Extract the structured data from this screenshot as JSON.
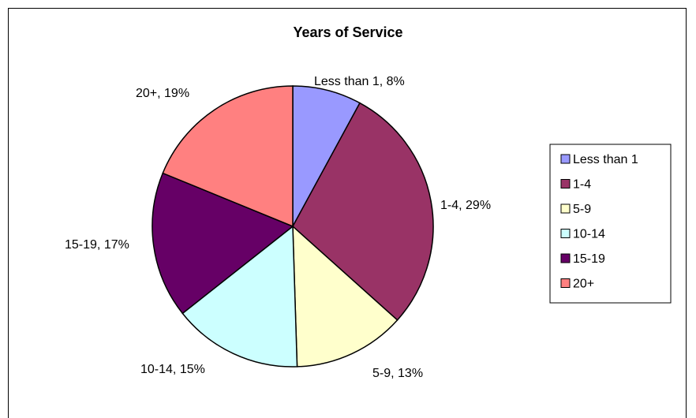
{
  "chart_data": {
    "type": "pie",
    "title": "Years of Service",
    "categories": [
      "Less than 1",
      "1-4",
      "5-9",
      "10-14",
      "15-19",
      "20+"
    ],
    "values": [
      8,
      29,
      13,
      15,
      17,
      19
    ],
    "data_labels": [
      "Less than 1, 8%",
      "1-4, 29%",
      "5-9, 13%",
      "10-14, 15%",
      "15-19, 17%",
      "20+, 19%"
    ],
    "colors": [
      "#9999FF",
      "#993366",
      "#FFFFCC",
      "#CCFFFF",
      "#660066",
      "#FF8080"
    ],
    "legend": {
      "position": "right",
      "entries": [
        "Less than 1",
        "1-4",
        "5-9",
        "10-14",
        "15-19",
        "20+"
      ]
    }
  }
}
